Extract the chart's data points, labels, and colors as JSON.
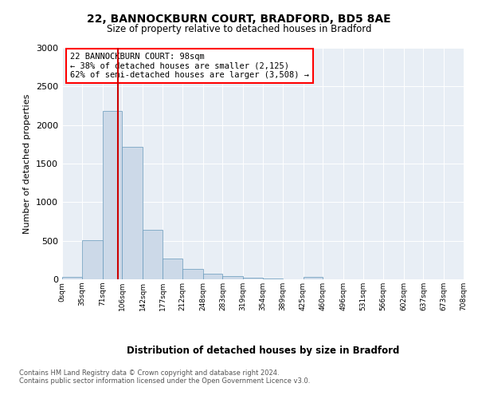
{
  "title1": "22, BANNOCKBURN COURT, BRADFORD, BD5 8AE",
  "title2": "Size of property relative to detached houses in Bradford",
  "xlabel": "Distribution of detached houses by size in Bradford",
  "ylabel": "Number of detached properties",
  "bar_color": "#ccd9e8",
  "bar_edge_color": "#6699bb",
  "vline_color": "#cc0000",
  "vline_x": 98,
  "annotation_text": "22 BANNOCKBURN COURT: 98sqm\n← 38% of detached houses are smaller (2,125)\n62% of semi-detached houses are larger (3,508) →",
  "bin_edges": [
    0,
    35,
    71,
    106,
    142,
    177,
    212,
    248,
    283,
    319,
    354,
    389,
    425,
    460,
    496,
    531,
    566,
    602,
    637,
    673,
    708
  ],
  "bin_counts": [
    30,
    510,
    2180,
    1720,
    640,
    270,
    130,
    75,
    45,
    20,
    10,
    5,
    30,
    5,
    2,
    2,
    2,
    1,
    1,
    1
  ],
  "ylim": [
    0,
    3000
  ],
  "yticks": [
    0,
    500,
    1000,
    1500,
    2000,
    2500,
    3000
  ],
  "footer1": "Contains HM Land Registry data © Crown copyright and database right 2024.",
  "footer2": "Contains public sector information licensed under the Open Government Licence v3.0.",
  "bg_color": "#ffffff",
  "plot_bg_color": "#e8eef5"
}
